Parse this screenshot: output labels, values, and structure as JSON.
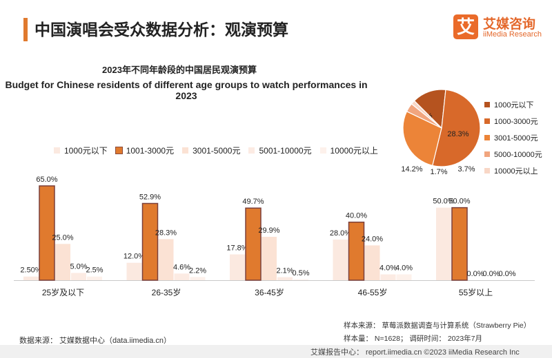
{
  "header": {
    "title": "中国演唱会受众数据分析：观演预算",
    "logo_mark": "艾",
    "logo_cn": "艾媒咨询",
    "logo_en": "iiMedia Research"
  },
  "chart_data": [
    {
      "type": "bar",
      "title": "2023年不同年龄段的中国居民观演预算",
      "subtitle": "Budget for Chinese residents of different age groups to watch performances in 2023",
      "xlabel": "",
      "ylabel": "",
      "ylim": [
        0,
        65
      ],
      "grid": false,
      "legend_position": "top",
      "categories": [
        "25岁及以下",
        "26-35岁",
        "36-45岁",
        "46-55岁",
        "55岁以上"
      ],
      "series": [
        {
          "name": "1000元以下",
          "color": "#fbe9e0",
          "values": [
            2.5,
            12.0,
            17.8,
            28.0,
            50.0
          ],
          "labels": [
            "2.50%",
            "12.0%",
            "17.8%",
            "28.0%",
            "50.0%"
          ]
        },
        {
          "name": "1001-3000元",
          "color": "#e07a2e",
          "values": [
            65.0,
            52.9,
            49.7,
            40.0,
            50.0
          ],
          "labels": [
            "65.0%",
            "52.9%",
            "49.7%",
            "40.0%",
            "50.0%"
          ]
        },
        {
          "name": "3001-5000元",
          "color": "#fbe2d4",
          "values": [
            25.0,
            28.3,
            29.9,
            24.0,
            0.0
          ],
          "labels": [
            "25.0%",
            "28.3%",
            "29.9%",
            "24.0%",
            "0.0%"
          ]
        },
        {
          "name": "5001-10000元",
          "color": "#fcebe3",
          "values": [
            5.0,
            4.6,
            2.1,
            4.0,
            0.0
          ],
          "labels": [
            "5.0%",
            "4.6%",
            "2.1%",
            "4.0%",
            "0.0%"
          ]
        },
        {
          "name": "10000元以上",
          "color": "#fdf1eb",
          "values": [
            2.5,
            2.2,
            0.5,
            4.0,
            0.0
          ],
          "labels": [
            "2.5%",
            "2.2%",
            "0.5%",
            "4.0%",
            "0.0%"
          ]
        }
      ]
    },
    {
      "type": "pie",
      "slices": [
        {
          "name": "1000元以下",
          "value": 14.2,
          "label": "14.2%",
          "color": "#b5531f"
        },
        {
          "name": "1000-3000元",
          "value": 52.1,
          "label": "52.1%",
          "color": "#d8692a"
        },
        {
          "name": "3001-5000元",
          "value": 28.3,
          "label": "28.3%",
          "color": "#ec8438"
        },
        {
          "name": "5000-10000元",
          "value": 3.7,
          "label": "3.7%",
          "color": "#f1a57e"
        },
        {
          "name": "10000元以上",
          "value": 1.7,
          "label": "1.7%",
          "color": "#f8d7c6"
        }
      ]
    }
  ],
  "footer": {
    "data_source": "数据来源：  艾媒数据中心（data.iimedia.cn）",
    "sample_source": "样本来源：  草莓派数据调查与计算系统（Strawberry Pie）",
    "sample_info": "样本量：  N=1628；  调研时间：  2023年7月",
    "copyright": "艾媒报告中心：  report.iimedia.cn  ©2023  iiMedia Research  Inc"
  }
}
